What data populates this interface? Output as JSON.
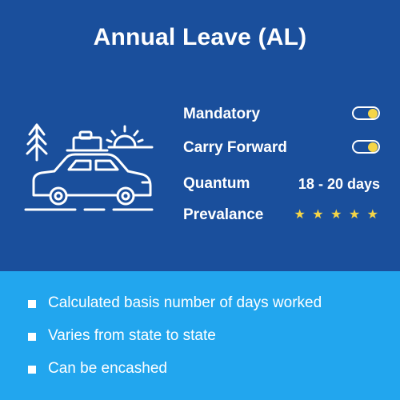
{
  "title": "Annual Leave (AL)",
  "accent_color": "#f5d547",
  "top_background": "#1a4f9c",
  "bottom_background": "#22a6ee",
  "illustration_icon": "car-with-luggage-tree-sun-icon",
  "attributes": [
    {
      "label": "Mandatory",
      "kind": "toggle",
      "on": true
    },
    {
      "label": "Carry Forward",
      "kind": "toggle",
      "on": true
    },
    {
      "label": "Quantum",
      "kind": "text",
      "value": "18 - 20 days"
    },
    {
      "label": "Prevalance",
      "kind": "rating",
      "rating": 5,
      "max": 5,
      "stars": "★ ★ ★ ★ ★"
    }
  ],
  "bullets": [
    "Calculated basis number of days worked",
    "Varies from state to state",
    "Can be encashed"
  ]
}
